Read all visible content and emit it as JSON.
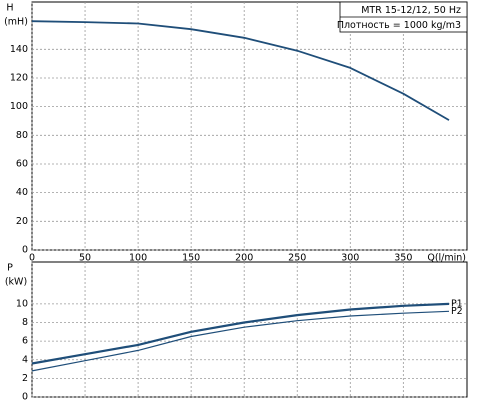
{
  "chart_data": [
    {
      "type": "line",
      "legend_lines": [
        "MTR 15-12/12, 50 Hz",
        "Плотность = 1000 kg/m3"
      ],
      "ylabel": "H",
      "yunit": "(mH)",
      "xlabel": "Q(l/min)",
      "x": [
        0,
        50,
        100,
        150,
        200,
        250,
        300,
        350,
        393
      ],
      "series": [
        {
          "color": "#1f4e79",
          "values": [
            159.6,
            159,
            158,
            154,
            148,
            139,
            127,
            109,
            90.6
          ]
        }
      ],
      "xlim": [
        0,
        410
      ],
      "ylim": [
        0,
        173
      ],
      "xticks": [
        0,
        50,
        100,
        150,
        200,
        250,
        300,
        350
      ],
      "yticks": [
        0,
        20,
        40,
        60,
        80,
        100,
        120,
        140
      ],
      "grid": true,
      "xtick_labels": true
    },
    {
      "type": "line",
      "ylabel": "P",
      "yunit": "(kW)",
      "x": [
        0,
        50,
        100,
        150,
        200,
        250,
        300,
        350,
        393
      ],
      "series": [
        {
          "name": "P1",
          "color": "#1f4e79",
          "width": 2.2,
          "values": [
            3.6,
            4.6,
            5.6,
            7,
            8,
            8.8,
            9.4,
            9.8,
            10
          ]
        },
        {
          "name": "P2",
          "color": "#1f4e79",
          "width": 1.2,
          "values": [
            2.8,
            3.9,
            5,
            6.5,
            7.5,
            8.2,
            8.7,
            9,
            9.2
          ]
        }
      ],
      "xlim": [
        0,
        410
      ],
      "ylim": [
        0,
        14.5
      ],
      "xticks": [
        0,
        50,
        100,
        150,
        200,
        250,
        300,
        350
      ],
      "yticks": [
        0,
        2,
        4,
        6,
        8,
        10
      ],
      "grid": true,
      "xtick_labels": false
    }
  ]
}
